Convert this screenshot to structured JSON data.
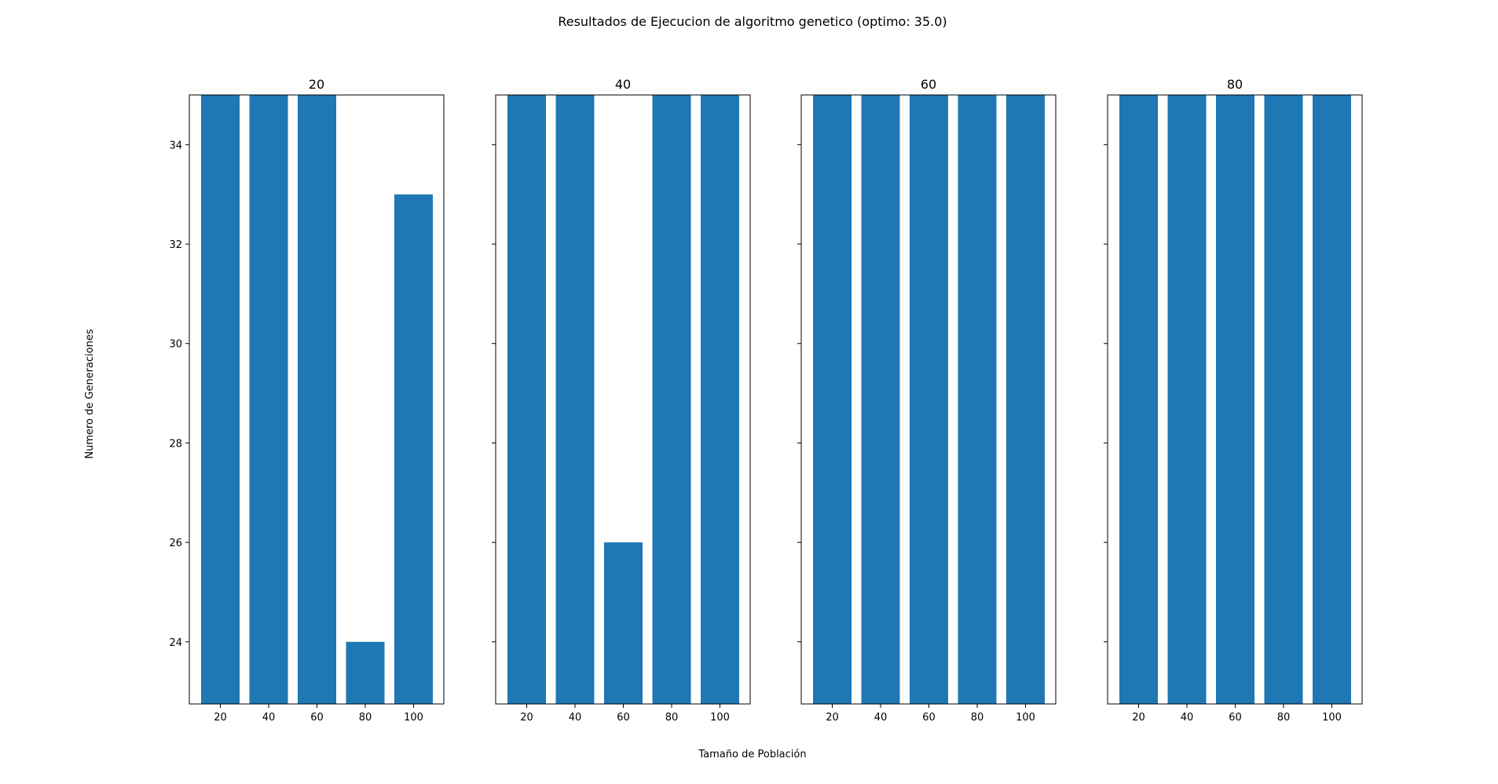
{
  "figure": {
    "title": "Resultados de Ejecucion de algoritmo genetico (optimo: 35.0)",
    "xlabel": "Tamaño de Población",
    "ylabel": "Numero de Generaciones"
  },
  "colors": {
    "bar": "#1f77b4",
    "axes": "#000000",
    "background": "#ffffff"
  },
  "chart_data": [
    {
      "type": "bar",
      "title": "20",
      "categories": [
        "20",
        "40",
        "60",
        "80",
        "100"
      ],
      "values": [
        35,
        35,
        35,
        24,
        33
      ],
      "ylim": [
        22.75,
        35.0
      ],
      "yticks": [
        "24",
        "26",
        "28",
        "30",
        "32",
        "34"
      ],
      "show_ytick_labels": true,
      "grid": false
    },
    {
      "type": "bar",
      "title": "40",
      "categories": [
        "20",
        "40",
        "60",
        "80",
        "100"
      ],
      "values": [
        35,
        35,
        26,
        35,
        35
      ],
      "ylim": [
        22.75,
        35.0
      ],
      "yticks": [
        "24",
        "26",
        "28",
        "30",
        "32",
        "34"
      ],
      "show_ytick_labels": false,
      "grid": false
    },
    {
      "type": "bar",
      "title": "60",
      "categories": [
        "20",
        "40",
        "60",
        "80",
        "100"
      ],
      "values": [
        35,
        35,
        35,
        35,
        35
      ],
      "ylim": [
        22.75,
        35.0
      ],
      "yticks": [
        "24",
        "26",
        "28",
        "30",
        "32",
        "34"
      ],
      "show_ytick_labels": false,
      "grid": false
    },
    {
      "type": "bar",
      "title": "80",
      "categories": [
        "20",
        "40",
        "60",
        "80",
        "100"
      ],
      "values": [
        35,
        35,
        35,
        35,
        35
      ],
      "ylim": [
        22.75,
        35.0
      ],
      "yticks": [
        "24",
        "26",
        "28",
        "30",
        "32",
        "34"
      ],
      "show_ytick_labels": false,
      "grid": false
    }
  ]
}
